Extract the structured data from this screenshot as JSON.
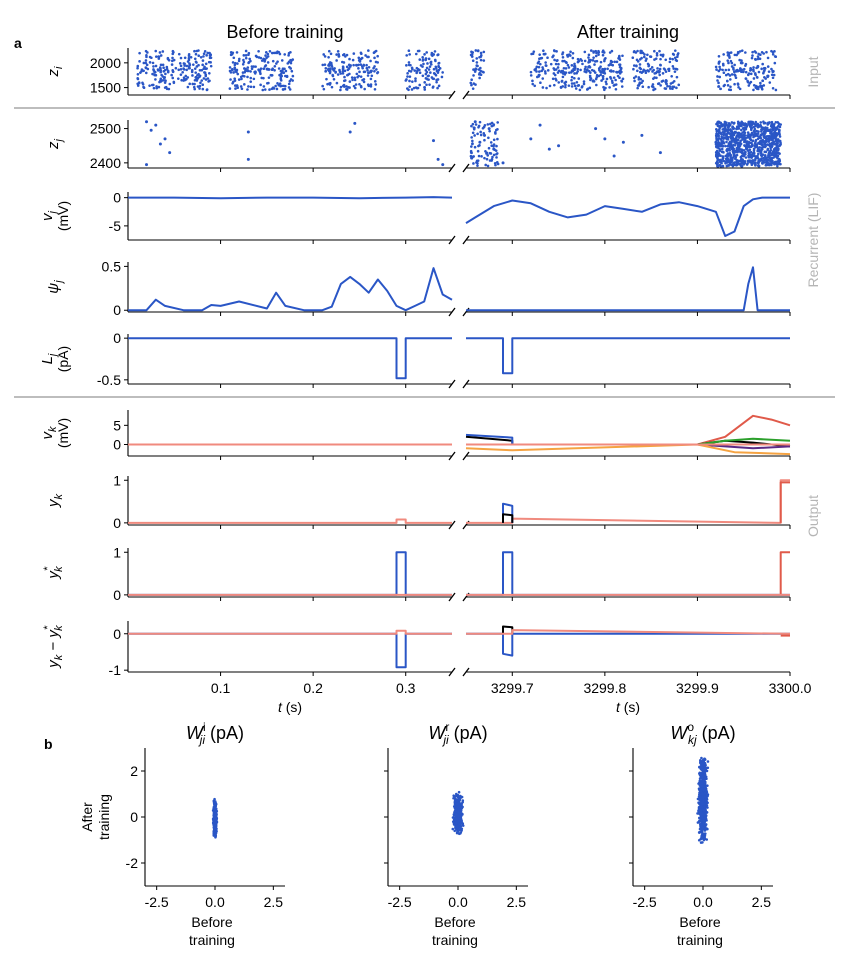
{
  "panel_a_label": "a",
  "panel_b_label": "b",
  "titles": {
    "before": "Before training",
    "after": "After training"
  },
  "sections": {
    "input": "Input",
    "recurrent": "Recurrent (LIF)",
    "output": "Output"
  },
  "xlabel": {
    "t": "t",
    "unit": " (s)"
  },
  "row_labels": {
    "z_i": "z",
    "z_i_sub": "i",
    "z_j": "z",
    "z_j_sub": "j",
    "v_j": "v",
    "v_j_sub": "j",
    "v_j_unit": "(mV)",
    "psi_j": "ψ",
    "psi_j_sub": "j",
    "L_j": "L",
    "L_j_sub": "j",
    "L_j_unit": "(pA)",
    "v_k": "v",
    "v_k_sub": "k",
    "v_k_unit": "(mV)",
    "y_k": "y",
    "y_k_sub": "k",
    "ystar_k": "y",
    "ystar_k_sub": "k",
    "ystar_k_sup": "*",
    "err_k": "y",
    "err_k_sub": "k",
    "err_minus": " − ",
    "err_y2": "y",
    "err_sub2": "k",
    "err_sup2": "*"
  },
  "colors": {
    "blue": "#2a56c6",
    "red": "#e05a4a",
    "salmon": "#f08a7e",
    "gray": "#b5b5b5",
    "green": "#2ca02c",
    "orange": "#f5a342",
    "purple": "#5b2a86",
    "black": "#000000",
    "pink": "#e377c2"
  },
  "chart_data": [
    {
      "type": "scatter",
      "panel": "a",
      "row": "z_i",
      "title": "Before training",
      "ylabel": "z_i",
      "yticks": [
        1500,
        2000
      ],
      "ylim": [
        1350,
        2300
      ],
      "xlim_before": [
        0.0,
        0.35
      ],
      "xlim_after": [
        3299.65,
        3300.0
      ],
      "description_points": "dense input raster, bursts of activity",
      "points_before": [
        [
          0.01,
          1550
        ],
        [
          0.02,
          1800
        ],
        [
          0.03,
          2150
        ],
        [
          0.04,
          1700
        ],
        [
          0.05,
          1600
        ],
        [
          0.06,
          2000
        ],
        [
          0.07,
          2100
        ],
        [
          0.08,
          1900
        ],
        [
          0.09,
          1520
        ],
        [
          0.12,
          1650
        ],
        [
          0.13,
          2050
        ],
        [
          0.14,
          1750
        ],
        [
          0.15,
          2200
        ],
        [
          0.16,
          1580
        ],
        [
          0.17,
          1950
        ],
        [
          0.18,
          1850
        ],
        [
          0.2,
          1600
        ],
        [
          0.21,
          2100
        ],
        [
          0.22,
          1700
        ],
        [
          0.23,
          2000
        ],
        [
          0.24,
          1550
        ],
        [
          0.25,
          1800
        ],
        [
          0.27,
          2150
        ],
        [
          0.28,
          1650
        ],
        [
          0.29,
          1900
        ],
        [
          0.3,
          2050
        ],
        [
          0.31,
          1750
        ],
        [
          0.33,
          1600
        ],
        [
          0.34,
          2000
        ]
      ],
      "points_after": [
        [
          3299.66,
          1600
        ],
        [
          3299.67,
          2000
        ],
        [
          3299.68,
          1700
        ],
        [
          3299.72,
          1800
        ],
        [
          3299.74,
          2100
        ],
        [
          3299.76,
          1650
        ],
        [
          3299.78,
          1950
        ],
        [
          3299.8,
          2050
        ],
        [
          3299.82,
          1550
        ],
        [
          3299.84,
          1900
        ],
        [
          3299.86,
          1750
        ],
        [
          3299.88,
          2150
        ],
        [
          3299.92,
          1600
        ],
        [
          3299.94,
          2000
        ],
        [
          3299.96,
          1800
        ],
        [
          3299.98,
          1700
        ]
      ]
    },
    {
      "type": "scatter",
      "panel": "a",
      "row": "z_j",
      "ylabel": "z_j",
      "yticks": [
        2400,
        2500
      ],
      "ylim": [
        2385,
        2525
      ],
      "points_before": [
        [
          0.02,
          2520
        ],
        [
          0.025,
          2495
        ],
        [
          0.03,
          2510
        ],
        [
          0.035,
          2455
        ],
        [
          0.04,
          2470
        ],
        [
          0.045,
          2430
        ],
        [
          0.02,
          2395
        ],
        [
          0.13,
          2490
        ],
        [
          0.13,
          2410
        ],
        [
          0.24,
          2490
        ],
        [
          0.245,
          2515
        ],
        [
          0.33,
          2465
        ],
        [
          0.335,
          2410
        ],
        [
          0.34,
          2395
        ]
      ],
      "points_after": [
        [
          3299.66,
          2520
        ],
        [
          3299.67,
          2480
        ],
        [
          3299.68,
          2440
        ],
        [
          3299.69,
          2400
        ],
        [
          3299.665,
          2460
        ],
        [
          3299.675,
          2500
        ],
        [
          3299.72,
          2470
        ],
        [
          3299.73,
          2510
        ],
        [
          3299.74,
          2440
        ],
        [
          3299.75,
          2450
        ],
        [
          3299.79,
          2500
        ],
        [
          3299.8,
          2470
        ],
        [
          3299.81,
          2420
        ],
        [
          3299.82,
          2460
        ],
        [
          3299.84,
          2480
        ],
        [
          3299.86,
          2430
        ],
        [
          3299.92,
          2460
        ],
        [
          3299.93,
          2500
        ],
        [
          3299.94,
          2420
        ],
        [
          3299.95,
          2480
        ]
      ],
      "dense_block_after": [
        3299.92,
        3299.99
      ]
    },
    {
      "type": "line",
      "panel": "a",
      "row": "v_j",
      "ylabel": "v_j (mV)",
      "yticks": [
        -5,
        0
      ],
      "ylim": [
        -7.5,
        1
      ],
      "series": [
        {
          "name": "",
          "x_before": [
            0.0,
            0.05,
            0.1,
            0.15,
            0.2,
            0.25,
            0.3,
            0.33,
            0.35
          ],
          "y_before": [
            0,
            0,
            -0.1,
            0,
            0,
            -0.1,
            0,
            0.1,
            0
          ],
          "x_after": [
            3299.65,
            3299.66,
            3299.68,
            3299.7,
            3299.72,
            3299.74,
            3299.76,
            3299.78,
            3299.8,
            3299.82,
            3299.84,
            3299.86,
            3299.88,
            3299.9,
            3299.92,
            3299.93,
            3299.94,
            3299.95,
            3299.96,
            3299.97,
            3300.0
          ],
          "y_after": [
            -4.5,
            -3.5,
            -1.5,
            -0.5,
            -1,
            -2.5,
            -3.5,
            -3,
            -1.5,
            -2,
            -2.5,
            -1.2,
            -0.8,
            -1.5,
            -2.5,
            -6.8,
            -6,
            -1.5,
            -0.3,
            0,
            0
          ]
        }
      ]
    },
    {
      "type": "line",
      "panel": "a",
      "row": "psi_j",
      "ylabel": "psi_j",
      "yticks": [
        0.0,
        0.5
      ],
      "ylim": [
        -0.02,
        0.55
      ],
      "series": [
        {
          "name": "",
          "x_before": [
            0.0,
            0.02,
            0.03,
            0.04,
            0.06,
            0.08,
            0.09,
            0.1,
            0.12,
            0.15,
            0.16,
            0.17,
            0.19,
            0.2,
            0.21,
            0.22,
            0.23,
            0.24,
            0.25,
            0.26,
            0.27,
            0.28,
            0.29,
            0.3,
            0.31,
            0.32,
            0.33,
            0.34,
            0.35
          ],
          "y_before": [
            0,
            0,
            0.12,
            0.05,
            0,
            0,
            0.06,
            0.05,
            0.1,
            0.02,
            0.2,
            0.05,
            0,
            0,
            0,
            0.04,
            0.3,
            0.38,
            0.3,
            0.2,
            0.35,
            0.22,
            0.05,
            0,
            0.05,
            0.1,
            0.48,
            0.18,
            0.12
          ],
          "x_after": [
            3299.65,
            3299.7,
            3299.8,
            3299.9,
            3299.95,
            3299.955,
            3299.96,
            3299.965,
            3299.97,
            3300.0
          ],
          "y_after": [
            0,
            0,
            0,
            0,
            0,
            0.3,
            0.49,
            0,
            0,
            0
          ]
        }
      ]
    },
    {
      "type": "line",
      "panel": "a",
      "row": "L_j",
      "ylabel": "L_j (pA)",
      "yticks": [
        -0.5,
        0.0
      ],
      "ylim": [
        -0.55,
        0.05
      ],
      "series": [
        {
          "name": "",
          "x_before": [
            0.0,
            0.29,
            0.29,
            0.3,
            0.3,
            0.35
          ],
          "y_before": [
            0,
            0,
            -0.48,
            -0.48,
            0,
            0
          ],
          "x_after": [
            3299.65,
            3299.69,
            3299.69,
            3299.7,
            3299.7,
            3300.0
          ],
          "y_after": [
            0,
            0,
            -0.42,
            -0.42,
            0,
            0
          ]
        }
      ]
    },
    {
      "type": "line",
      "panel": "a",
      "row": "v_k",
      "ylabel": "v_k (mV)",
      "yticks": [
        0,
        5
      ],
      "ylim": [
        -3,
        9
      ],
      "series": [
        {
          "name": "",
          "color": "#e05a4a",
          "x_after": [
            3299.65,
            3299.9,
            3299.93,
            3299.96,
            3299.98,
            3300.0
          ],
          "y_after": [
            0,
            0,
            2,
            7.5,
            6.5,
            5
          ]
        },
        {
          "name": "",
          "color": "#000000",
          "x_after": [
            3299.65,
            3299.7,
            3299.7,
            3299.9,
            3299.93,
            3299.96,
            3300.0
          ],
          "y_after": [
            2,
            1,
            0,
            0,
            1,
            0.5,
            -0.5
          ]
        },
        {
          "name": "",
          "color": "#2a56c6",
          "x_after": [
            3299.65,
            3299.7,
            3299.7,
            3300.0
          ],
          "y_after": [
            2.5,
            1.8,
            0,
            0
          ]
        },
        {
          "name": "",
          "color": "#2ca02c",
          "x_after": [
            3299.65,
            3299.9,
            3299.93,
            3299.96,
            3300.0
          ],
          "y_after": [
            0,
            0,
            1,
            1.5,
            1
          ]
        },
        {
          "name": "",
          "color": "#5b2a86",
          "x_after": [
            3299.65,
            3299.9,
            3299.93,
            3299.96,
            3300.0
          ],
          "y_after": [
            0,
            0,
            -0.5,
            -1,
            -0.5
          ]
        },
        {
          "name": "",
          "color": "#f5a342",
          "x_after": [
            3299.65,
            3299.7,
            3299.9,
            3299.94,
            3300.0
          ],
          "y_after": [
            -1,
            -1.5,
            0,
            -2,
            -2.5
          ]
        },
        {
          "name": "",
          "color": "#f08a7e",
          "x_before": [
            0.0,
            0.35
          ],
          "y_before": [
            0,
            0
          ],
          "x_after": [
            3299.65,
            3299.9,
            3300.0
          ],
          "y_after": [
            0,
            0,
            0
          ]
        }
      ]
    },
    {
      "type": "line",
      "panel": "a",
      "row": "y_k",
      "ylabel": "y_k",
      "yticks": [
        0,
        1
      ],
      "ylim": [
        -0.05,
        1.1
      ],
      "series": [
        {
          "name": "",
          "color": "#f08a7e",
          "x_before": [
            0.0,
            0.29,
            0.29,
            0.3,
            0.3,
            0.35
          ],
          "y_before": [
            0,
            0,
            0.08,
            0.08,
            0,
            0
          ],
          "x_after": [
            3299.65,
            3299.7,
            3299.7,
            3299.99,
            3299.99,
            3300.0
          ],
          "y_after": [
            0,
            0,
            0.1,
            0,
            1,
            1
          ]
        },
        {
          "name": "",
          "color": "#2a56c6",
          "x_after": [
            3299.69,
            3299.69,
            3299.7,
            3299.7
          ],
          "y_after": [
            0,
            0.45,
            0.4,
            0
          ]
        },
        {
          "name": "",
          "color": "#000000",
          "x_after": [
            3299.69,
            3299.69,
            3299.7,
            3299.7
          ],
          "y_after": [
            0,
            0.2,
            0.18,
            0
          ]
        },
        {
          "name": "",
          "color": "#e05a4a",
          "x_after": [
            3299.99,
            3299.99,
            3300.0
          ],
          "y_after": [
            0,
            0.95,
            0.95
          ]
        }
      ]
    },
    {
      "type": "line",
      "panel": "a",
      "row": "ystar_k",
      "ylabel": "y*_k",
      "yticks": [
        0,
        1
      ],
      "ylim": [
        -0.05,
        1.1
      ],
      "series": [
        {
          "name": "",
          "color": "#2a56c6",
          "x_before": [
            0.0,
            0.29,
            0.29,
            0.3,
            0.3,
            0.35
          ],
          "y_before": [
            0,
            0,
            1,
            1,
            0,
            0
          ],
          "x_after": [
            3299.65,
            3299.69,
            3299.69,
            3299.7,
            3299.7,
            3300.0
          ],
          "y_after": [
            0,
            0,
            1,
            1,
            0,
            0
          ]
        },
        {
          "name": "",
          "color": "#e05a4a",
          "x_after": [
            3299.99,
            3299.99,
            3300.0
          ],
          "y_after": [
            0,
            1,
            1
          ]
        },
        {
          "name": "",
          "color": "#f08a7e",
          "x_before": [
            0.0,
            0.35
          ],
          "y_before": [
            0,
            0
          ],
          "x_after": [
            3299.65,
            3300.0
          ],
          "y_after": [
            0,
            0
          ]
        }
      ]
    },
    {
      "type": "line",
      "panel": "a",
      "row": "err_k",
      "ylabel": "y_k - y*_k",
      "yticks": [
        -1,
        0
      ],
      "ylim": [
        -1.05,
        0.35
      ],
      "series": [
        {
          "name": "",
          "color": "#2a56c6",
          "x_before": [
            0.0,
            0.29,
            0.29,
            0.3,
            0.3,
            0.35
          ],
          "y_before": [
            0,
            0,
            -0.92,
            -0.92,
            0,
            0
          ],
          "x_after": [
            3299.65,
            3299.69,
            3299.69,
            3299.7,
            3299.7,
            3300.0
          ],
          "y_after": [
            0,
            0,
            -0.55,
            -0.6,
            0,
            0
          ]
        },
        {
          "name": "",
          "color": "#000000",
          "x_after": [
            3299.69,
            3299.69,
            3299.7,
            3299.7
          ],
          "y_after": [
            0,
            0.2,
            0.18,
            0
          ]
        },
        {
          "name": "",
          "color": "#f08a7e",
          "x_before": [
            0.0,
            0.29,
            0.29,
            0.3,
            0.3,
            0.35
          ],
          "y_before": [
            0,
            0,
            0.08,
            0.08,
            0,
            0
          ],
          "x_after": [
            3299.65,
            3299.7,
            3299.7,
            3300.0
          ],
          "y_after": [
            0,
            0,
            0.1,
            0
          ]
        },
        {
          "name": "",
          "color": "#e05a4a",
          "x_after": [
            3299.99,
            3300.0
          ],
          "y_after": [
            -0.05,
            -0.05
          ]
        }
      ],
      "xticks_before": [
        0.1,
        0.2,
        0.3
      ],
      "xticks_after": [
        3299.7,
        3299.8,
        3299.9,
        3300.0
      ],
      "xticklabels_before": [
        "0.1",
        "0.2",
        "0.3"
      ],
      "xticklabels_after": [
        "3299.7",
        "3299.8",
        "3299.9",
        "3300.0"
      ]
    },
    {
      "type": "scatter",
      "panel": "b",
      "title": "W^i_ji (pA)",
      "title_main": "W",
      "title_sub": "ji",
      "title_sup": "i",
      "title_unit": " (pA)",
      "xlabel": "Before training",
      "ylabel": "After training",
      "xlim": [
        -3,
        3
      ],
      "ylim": [
        -3,
        3
      ],
      "xticks": [
        -2.5,
        0.0,
        2.5
      ],
      "yticks": [
        -2,
        0,
        2
      ],
      "spread_x": [
        -0.1,
        0.1
      ],
      "spread_y": [
        -0.9,
        0.8
      ]
    },
    {
      "type": "scatter",
      "panel": "b",
      "title": "W^r_ji (pA)",
      "title_main": "W",
      "title_sub": "ji",
      "title_sup": "r",
      "title_unit": " (pA)",
      "xlabel": "Before training",
      "xlim": [
        -3,
        3
      ],
      "ylim": [
        -3,
        3
      ],
      "xticks": [
        -2.5,
        0.0,
        2.5
      ],
      "spread_x": [
        -0.25,
        0.25
      ],
      "spread_y": [
        -0.8,
        1.1
      ]
    },
    {
      "type": "scatter",
      "panel": "b",
      "title": "W^o_kj (pA)",
      "title_main": "W",
      "title_sub": "kj",
      "title_sup": "o",
      "title_unit": " (pA)",
      "xlabel": "Before training",
      "xlim": [
        -3,
        3
      ],
      "ylim": [
        -3,
        3
      ],
      "xticks": [
        -2.5,
        0.0,
        2.5
      ],
      "spread_x": [
        -0.25,
        0.25
      ],
      "spread_y": [
        -1.2,
        2.7
      ]
    }
  ]
}
